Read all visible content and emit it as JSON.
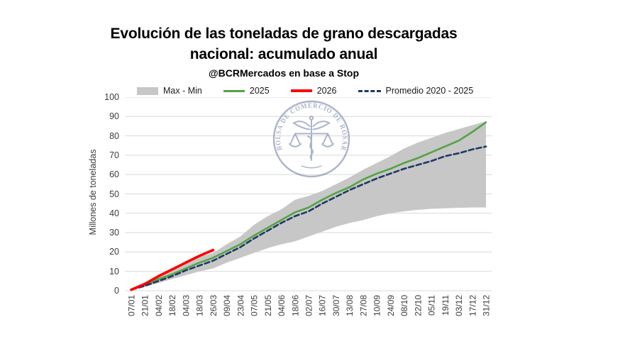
{
  "colors": {
    "band": "#c7c7c7",
    "line_2025": "#54a345",
    "line_2026": "#fe0000",
    "promedio": "#1f3864",
    "grid": "#d9d9d9",
    "axis_text": "#3d3d3d",
    "watermark": "#5a6b98"
  },
  "watermark": {
    "text": "BOLSA DE COMERCIO DE ROSARIO"
  },
  "chart_data": {
    "type": "area",
    "title": "Evolución de las toneladas de grano descargadas nacional: acumulado anual",
    "title_line1": "Evolución de las toneladas de grano descargadas",
    "title_line2": "nacional: acumulado anual",
    "subtitle": "@BCRMercados en base a Stop",
    "ylabel": "Millones de toneladas",
    "xlabel": "",
    "ylim": [
      0,
      100
    ],
    "ytick_step": 10,
    "grid": true,
    "legend_position": "top",
    "categories": [
      "07/01",
      "21/01",
      "04/02",
      "18/02",
      "04/03",
      "18/03",
      "26/03",
      "09/04",
      "23/04",
      "07/05",
      "21/05",
      "04/06",
      "18/06",
      "02/07",
      "16/07",
      "30/07",
      "13/08",
      "27/08",
      "10/09",
      "24/09",
      "08/10",
      "22/10",
      "05/11",
      "19/11",
      "03/12",
      "17/12",
      "31/12"
    ],
    "series": [
      {
        "name": "Max - Min",
        "type": "band",
        "color": "#c7c7c7",
        "max": [
          1,
          4,
          7.5,
          11,
          14.5,
          17.5,
          19.5,
          24,
          28,
          34,
          38.5,
          42,
          47,
          49,
          51.5,
          55,
          58.5,
          62.5,
          66,
          69.5,
          73.5,
          76.5,
          79,
          81.5,
          83.5,
          85.5,
          87.5
        ],
        "min": [
          0.3,
          2,
          4,
          6,
          8,
          10,
          11.5,
          14.5,
          17,
          19.5,
          22,
          24,
          25.5,
          28,
          30.5,
          33,
          35,
          36.5,
          38.5,
          40,
          41,
          41.8,
          42.3,
          42.6,
          42.8,
          43,
          43
        ]
      },
      {
        "name": "2025",
        "type": "line",
        "color": "#54a345",
        "dash": null,
        "width": 2.6,
        "values": [
          0.5,
          3,
          6,
          8.5,
          11.5,
          14.5,
          17,
          20.5,
          24,
          28.5,
          32.5,
          36.5,
          40.5,
          43,
          47,
          50.5,
          53.5,
          57.5,
          60.5,
          63,
          66,
          68.5,
          71.5,
          74.5,
          77.5,
          82,
          87
        ]
      },
      {
        "name": "2026",
        "type": "line",
        "color": "#fe0000",
        "dash": null,
        "width": 3.6,
        "values": [
          0.5,
          3.5,
          7.5,
          11,
          14.5,
          18,
          21
        ]
      },
      {
        "name": "Promedio 2020 - 2025",
        "type": "line",
        "color": "#1f3864",
        "dash": "7 4",
        "width": 2.6,
        "values": [
          0.5,
          2.5,
          5,
          7.5,
          10.5,
          13,
          15.5,
          19,
          22.5,
          27,
          31,
          35,
          38.5,
          41,
          45,
          48.5,
          52,
          55,
          58,
          60.5,
          63,
          65,
          67,
          69.5,
          71,
          73,
          74.5
        ]
      }
    ]
  }
}
